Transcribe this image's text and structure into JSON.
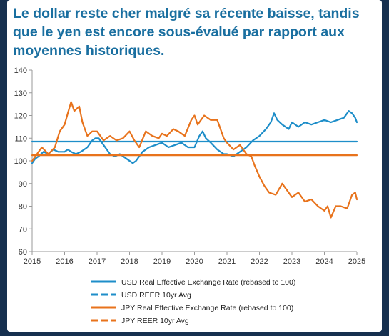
{
  "title": "Le dollar reste cher malgré sa récente baisse, tandis que le yen est encore sous-évalué par rapport aux moyennes historiques.",
  "colors": {
    "background": "#16304f",
    "title": "#1a6fa0",
    "usd": "#1e8ec9",
    "jpy": "#e8731c",
    "axis": "#999999"
  },
  "chart_data": {
    "type": "line",
    "title": "Le dollar reste cher malgré sa récente baisse, tandis que le yen est encore sous-évalué par rapport aux moyennes historiques.",
    "xlabel": "",
    "ylabel": "",
    "xlim": [
      2015,
      2025
    ],
    "ylim": [
      60,
      140
    ],
    "xticks": [
      "2015",
      "2016",
      "2017",
      "2018",
      "2019",
      "2020",
      "2021",
      "2022",
      "2023",
      "2024",
      "2025"
    ],
    "yticks": [
      "60",
      "70",
      "80",
      "90",
      "100",
      "110",
      "120",
      "130",
      "140"
    ],
    "grid": false,
    "legend": "bottom",
    "series": [
      {
        "name": "USD Real Effective Exchange Rate (rebased to 100)",
        "style": "solid",
        "color": "#1e8ec9",
        "x": [
          2015.0,
          2015.1,
          2015.2,
          2015.35,
          2015.5,
          2015.65,
          2015.8,
          2016.0,
          2016.1,
          2016.2,
          2016.35,
          2016.5,
          2016.7,
          2016.85,
          2016.95,
          2017.05,
          2017.2,
          2017.4,
          2017.55,
          2017.7,
          2017.9,
          2018.1,
          2018.2,
          2018.4,
          2018.6,
          2018.8,
          2019.0,
          2019.2,
          2019.4,
          2019.6,
          2019.8,
          2020.0,
          2020.15,
          2020.25,
          2020.35,
          2020.5,
          2020.7,
          2020.9,
          2021.0,
          2021.2,
          2021.4,
          2021.6,
          2021.8,
          2022.0,
          2022.2,
          2022.35,
          2022.45,
          2022.55,
          2022.7,
          2022.9,
          2023.0,
          2023.2,
          2023.4,
          2023.6,
          2023.8,
          2024.0,
          2024.2,
          2024.4,
          2024.6,
          2024.75,
          2024.85,
          2024.95,
          2025.0
        ],
        "y": [
          99,
          101,
          102,
          104,
          103,
          105,
          104,
          104,
          105,
          104,
          103,
          104,
          106,
          109,
          110,
          110,
          107,
          103,
          102,
          103,
          101,
          99,
          100,
          104,
          106,
          107,
          108,
          106,
          107,
          108,
          106,
          106,
          111,
          113,
          110,
          108,
          105,
          103,
          103,
          102,
          104,
          106,
          109,
          111,
          114,
          117,
          121,
          118,
          116,
          114,
          117,
          115,
          117,
          116,
          117,
          118,
          117,
          118,
          119,
          122,
          121,
          119,
          117
        ]
      },
      {
        "name": "USD REER 10yr Avg",
        "style": "dashed",
        "color": "#1e8ec9",
        "x": [
          2015,
          2025
        ],
        "y": [
          108.5,
          108.5
        ]
      },
      {
        "name": "JPY Real Effective Exchange Rate (rebased to 100)",
        "style": "solid",
        "color": "#e8731c",
        "x": [
          2015.0,
          2015.1,
          2015.3,
          2015.5,
          2015.7,
          2015.85,
          2016.0,
          2016.1,
          2016.2,
          2016.3,
          2016.45,
          2016.55,
          2016.7,
          2016.85,
          2017.0,
          2017.2,
          2017.4,
          2017.6,
          2017.8,
          2018.0,
          2018.15,
          2018.3,
          2018.5,
          2018.7,
          2018.9,
          2019.0,
          2019.15,
          2019.35,
          2019.5,
          2019.7,
          2019.9,
          2020.0,
          2020.1,
          2020.3,
          2020.5,
          2020.7,
          2020.9,
          2021.0,
          2021.2,
          2021.4,
          2021.6,
          2021.75,
          2021.85,
          2022.0,
          2022.15,
          2022.3,
          2022.5,
          2022.7,
          2022.85,
          2023.0,
          2023.2,
          2023.4,
          2023.6,
          2023.8,
          2024.0,
          2024.1,
          2024.2,
          2024.35,
          2024.5,
          2024.7,
          2024.85,
          2024.95,
          2025.0
        ],
        "y": [
          100,
          102,
          106,
          103,
          106,
          113,
          116,
          121,
          126,
          122,
          124,
          117,
          111,
          113,
          113,
          109,
          111,
          109,
          110,
          113,
          109,
          106,
          113,
          111,
          110,
          112,
          111,
          114,
          113,
          111,
          118,
          120,
          116,
          120,
          118,
          118,
          110,
          108,
          105,
          107,
          103,
          102,
          98,
          93,
          89,
          86,
          85,
          90,
          87,
          84,
          86,
          82,
          83,
          80,
          78,
          80,
          75,
          80,
          80,
          79,
          85,
          86,
          83
        ]
      },
      {
        "name": "JPY REER 10yr Avg",
        "style": "dashed",
        "color": "#e8731c",
        "x": [
          2015,
          2025
        ],
        "y": [
          102.5,
          102.5
        ]
      }
    ]
  }
}
